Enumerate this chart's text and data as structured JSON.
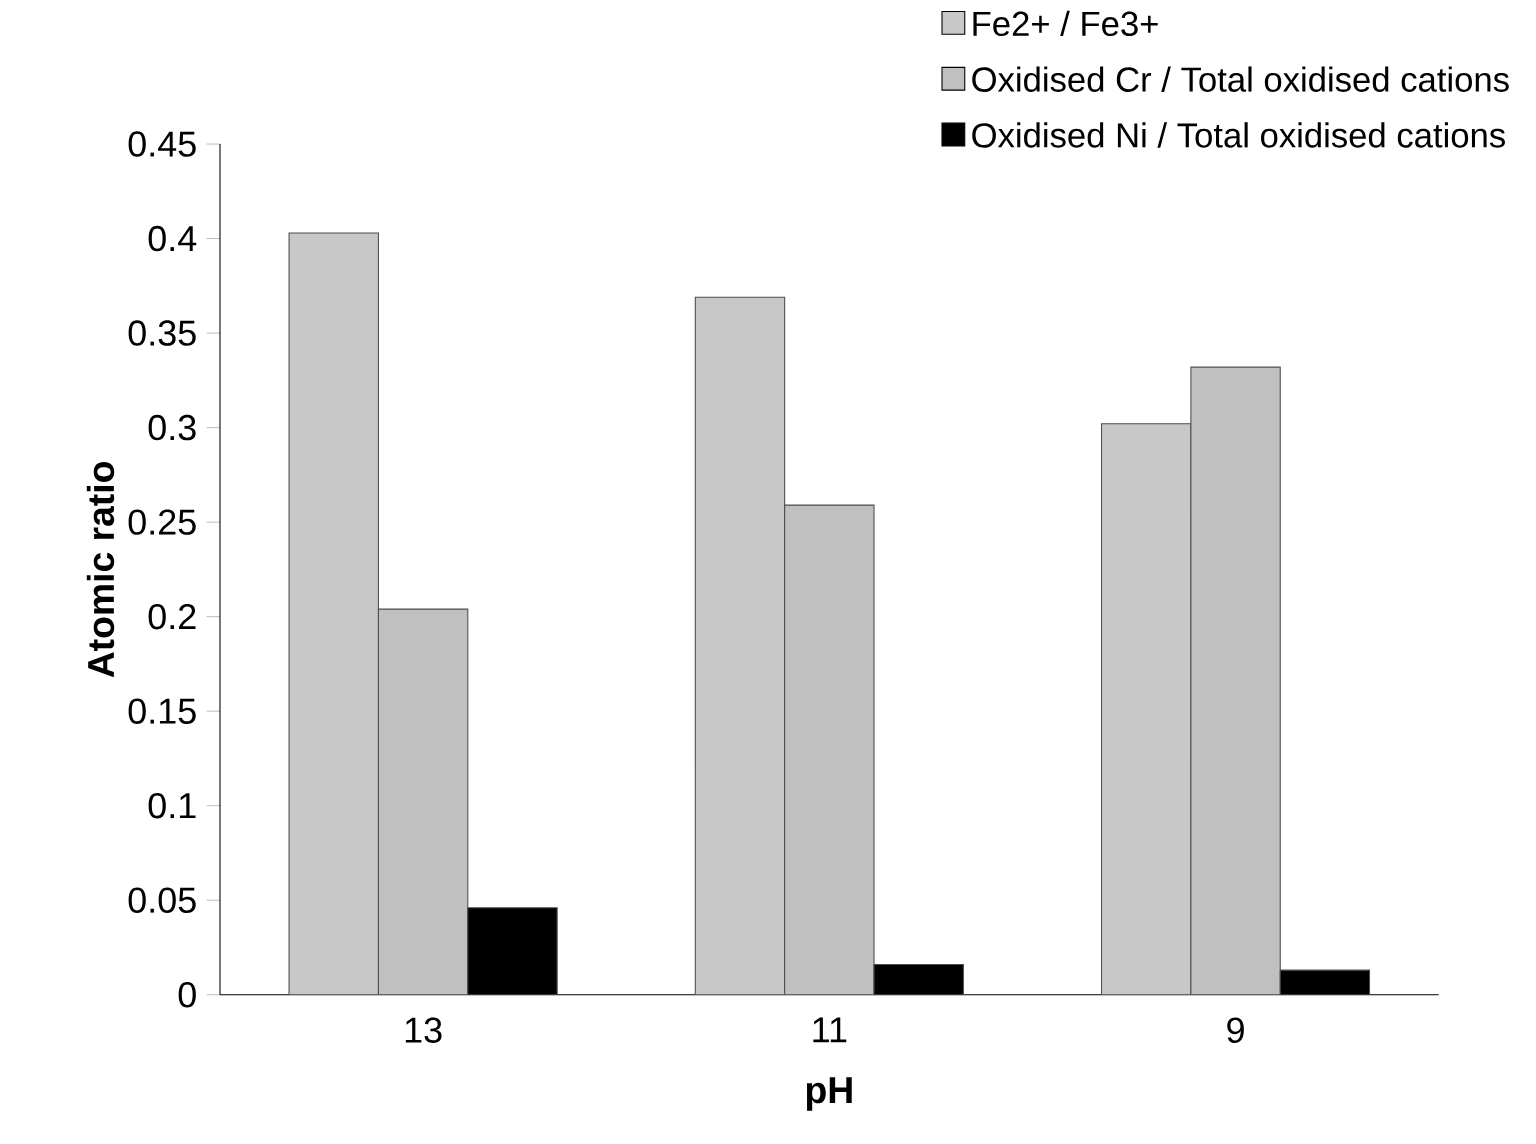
{
  "chart_data": {
    "type": "bar",
    "xlabel": "pH",
    "ylabel": "Atomic ratio",
    "categories": [
      "13",
      "11",
      "9"
    ],
    "series": [
      {
        "name": "Fe2+ / Fe3+",
        "color": "#c8c8c8",
        "values": [
          0.403,
          0.369,
          0.302
        ]
      },
      {
        "name": "Oxidised Cr / Total oxidised cations",
        "color": "#c0c0c0",
        "values": [
          0.204,
          0.259,
          0.332
        ]
      },
      {
        "name": "Oxidised Ni / Total oxidised cations",
        "color": "#000000",
        "values": [
          0.046,
          0.016,
          0.013
        ]
      }
    ],
    "ylim": [
      0,
      0.45
    ],
    "yticks": [
      0,
      0.05,
      0.1,
      0.15,
      0.2,
      0.25,
      0.3,
      0.35,
      0.4,
      0.45
    ],
    "grid": false,
    "legend": "top right"
  }
}
